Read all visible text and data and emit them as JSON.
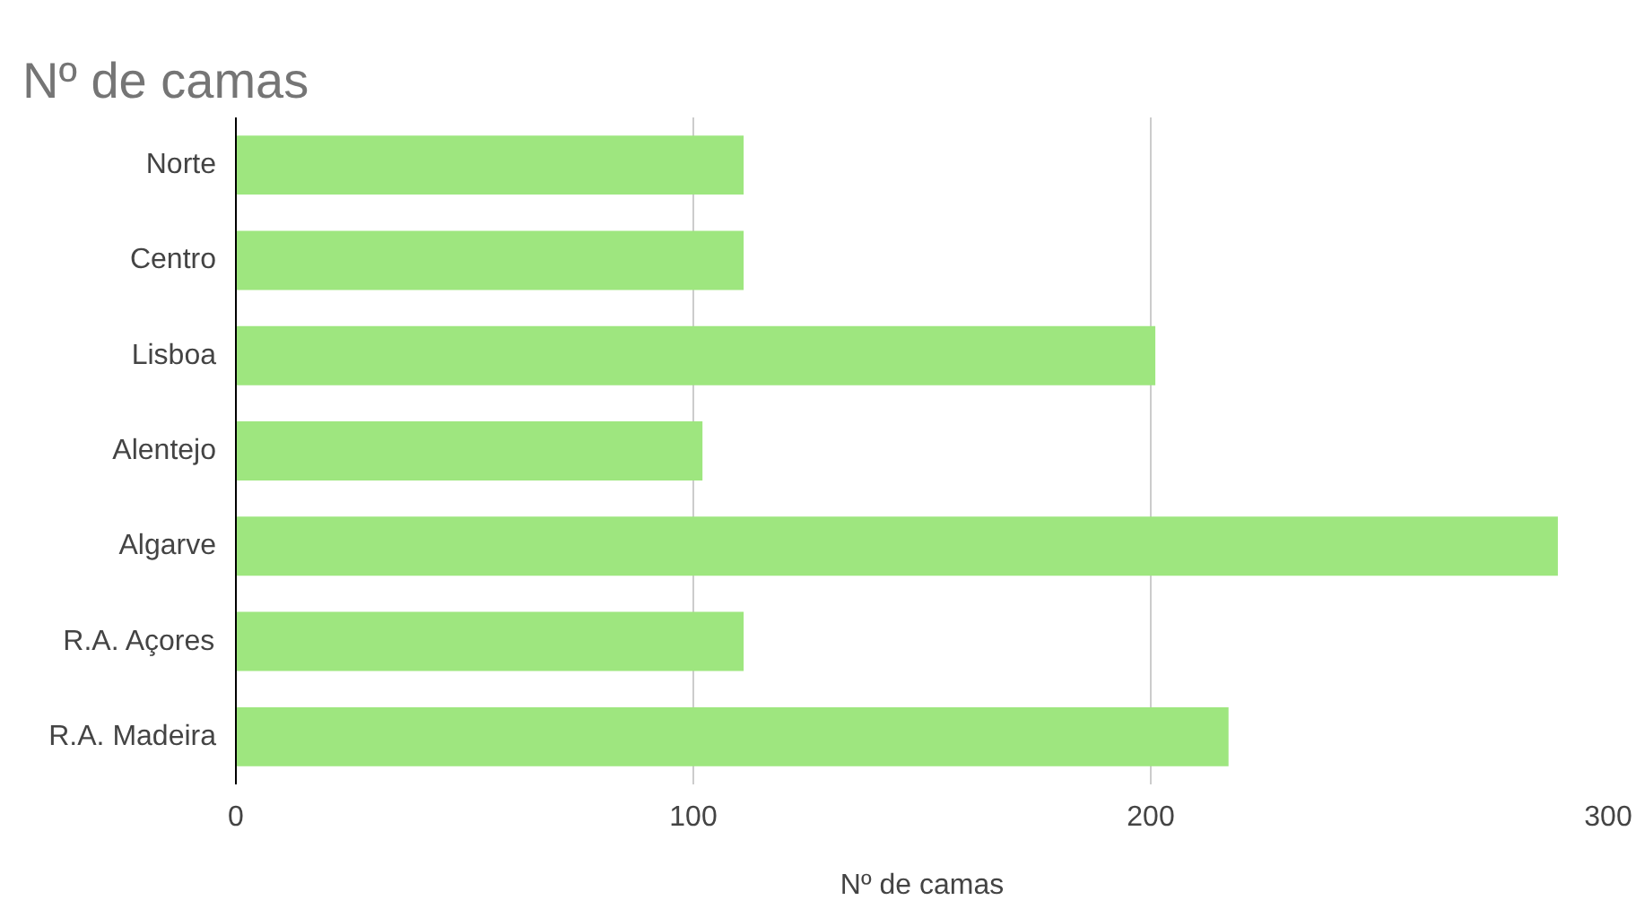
{
  "chart_data": {
    "type": "bar",
    "orientation": "horizontal",
    "title": "Nº de camas",
    "xlabel": "Nº de camas",
    "categories": [
      "Norte",
      "Centro",
      "Lisboa",
      "Alentejo",
      "Algarve",
      "R.A. Açores",
      "R.A. Madeira"
    ],
    "values": [
      111,
      111,
      201,
      102,
      289,
      111,
      217
    ],
    "color": "#9ee67f",
    "xlim": [
      0,
      300
    ],
    "xticks": [
      0,
      100,
      200,
      300
    ],
    "grid": "x"
  }
}
